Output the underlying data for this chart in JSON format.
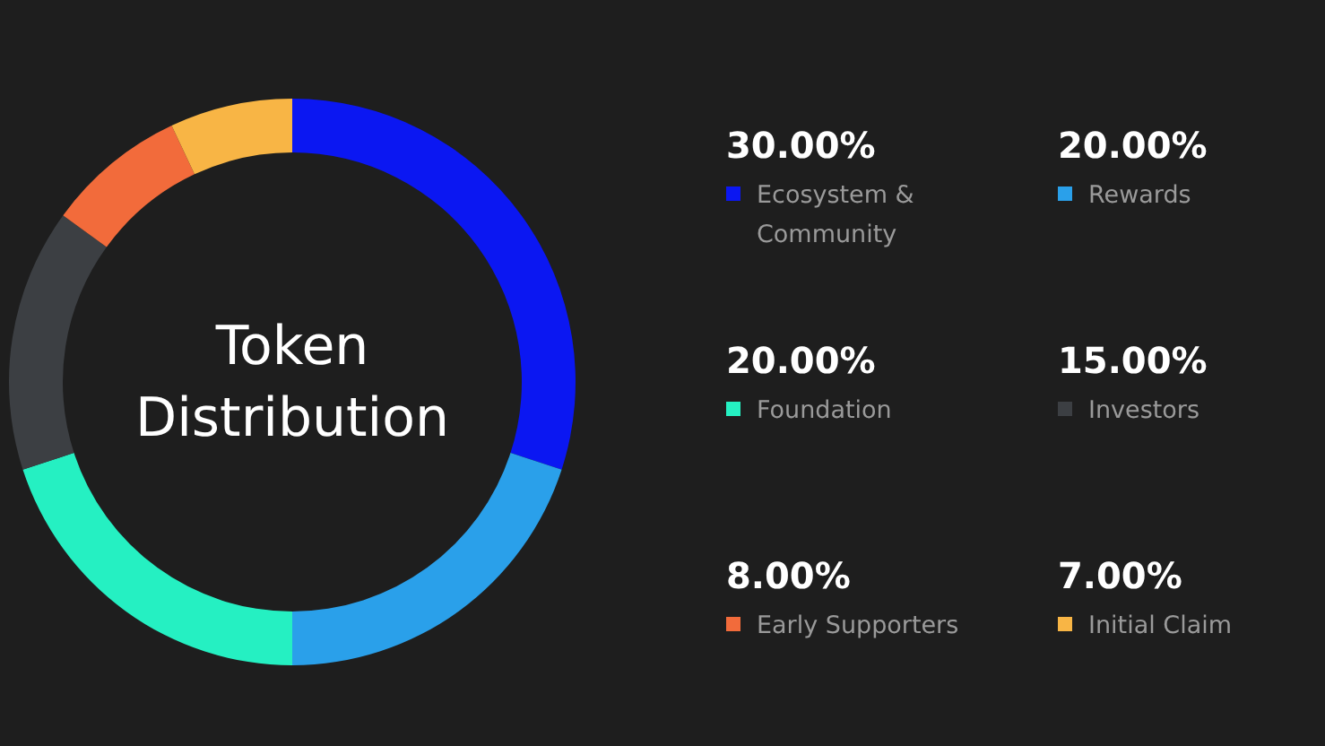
{
  "chart_data": {
    "type": "donut",
    "title": "Token Distribution",
    "categories": [
      "Ecosystem & Community",
      "Rewards",
      "Foundation",
      "Investors",
      "Early Supporters",
      "Initial Claim"
    ],
    "values": [
      30,
      20,
      20,
      15,
      8,
      7
    ],
    "colors": [
      "#0b17f2",
      "#2aa0ea",
      "#25f0c2",
      "#3c3f43",
      "#f26b3b",
      "#f8b545"
    ],
    "value_labels": [
      "30.00%",
      "20.00%",
      "20.00%",
      "15.00%",
      "8.00%",
      "7.00%"
    ],
    "legend": "right"
  }
}
